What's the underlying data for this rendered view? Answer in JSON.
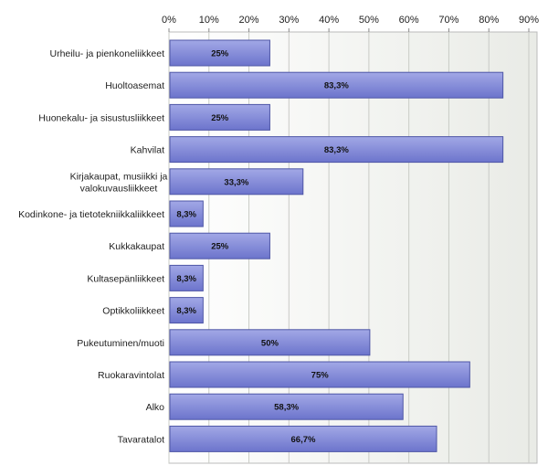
{
  "chart_data": {
    "type": "bar",
    "orientation": "horizontal",
    "categories": [
      [
        "Urheilu- ja pienkoneliikkeet"
      ],
      [
        "Huoltoasemat"
      ],
      [
        "Huonekalu- ja sisustusliikkeet"
      ],
      [
        "Kahvilat"
      ],
      [
        "Kirjakaupat, musiikki ja",
        "valokuvausliikkeet"
      ],
      [
        "Kodinkone- ja tietotekniikkaliikkeet"
      ],
      [
        "Kukkakaupat"
      ],
      [
        "Kultasepänliikkeet"
      ],
      [
        "Optikkoliikkeet"
      ],
      [
        "Pukeutuminen/muoti"
      ],
      [
        "Ruokaravintolat"
      ],
      [
        "Alko"
      ],
      [
        "Tavaratalot"
      ]
    ],
    "values": [
      25,
      83.3,
      25,
      83.3,
      33.3,
      8.3,
      25,
      8.3,
      8.3,
      50,
      75,
      58.3,
      66.7
    ],
    "value_labels": [
      "25%",
      "83,3%",
      "25%",
      "83,3%",
      "33,3%",
      "8,3%",
      "25%",
      "8,3%",
      "8,3%",
      "50%",
      "75%",
      "58,3%",
      "66,7%"
    ],
    "xticks": [
      "0%",
      "10%",
      "20%",
      "30%",
      "40%",
      "50%",
      "60%",
      "70%",
      "80%",
      "90%"
    ],
    "xlim": [
      0,
      90
    ],
    "axis_position": "top",
    "grid": true,
    "legend": "none",
    "colors": {
      "bar_top": "#a2a8e6",
      "bar_bottom": "#6c74cc",
      "bar_border": "#4e56a6",
      "plot_bg_left": "#ffffff",
      "plot_bg_right": "#e9ebe6",
      "grid": "#c9cbc6",
      "axis": "#888888"
    }
  }
}
